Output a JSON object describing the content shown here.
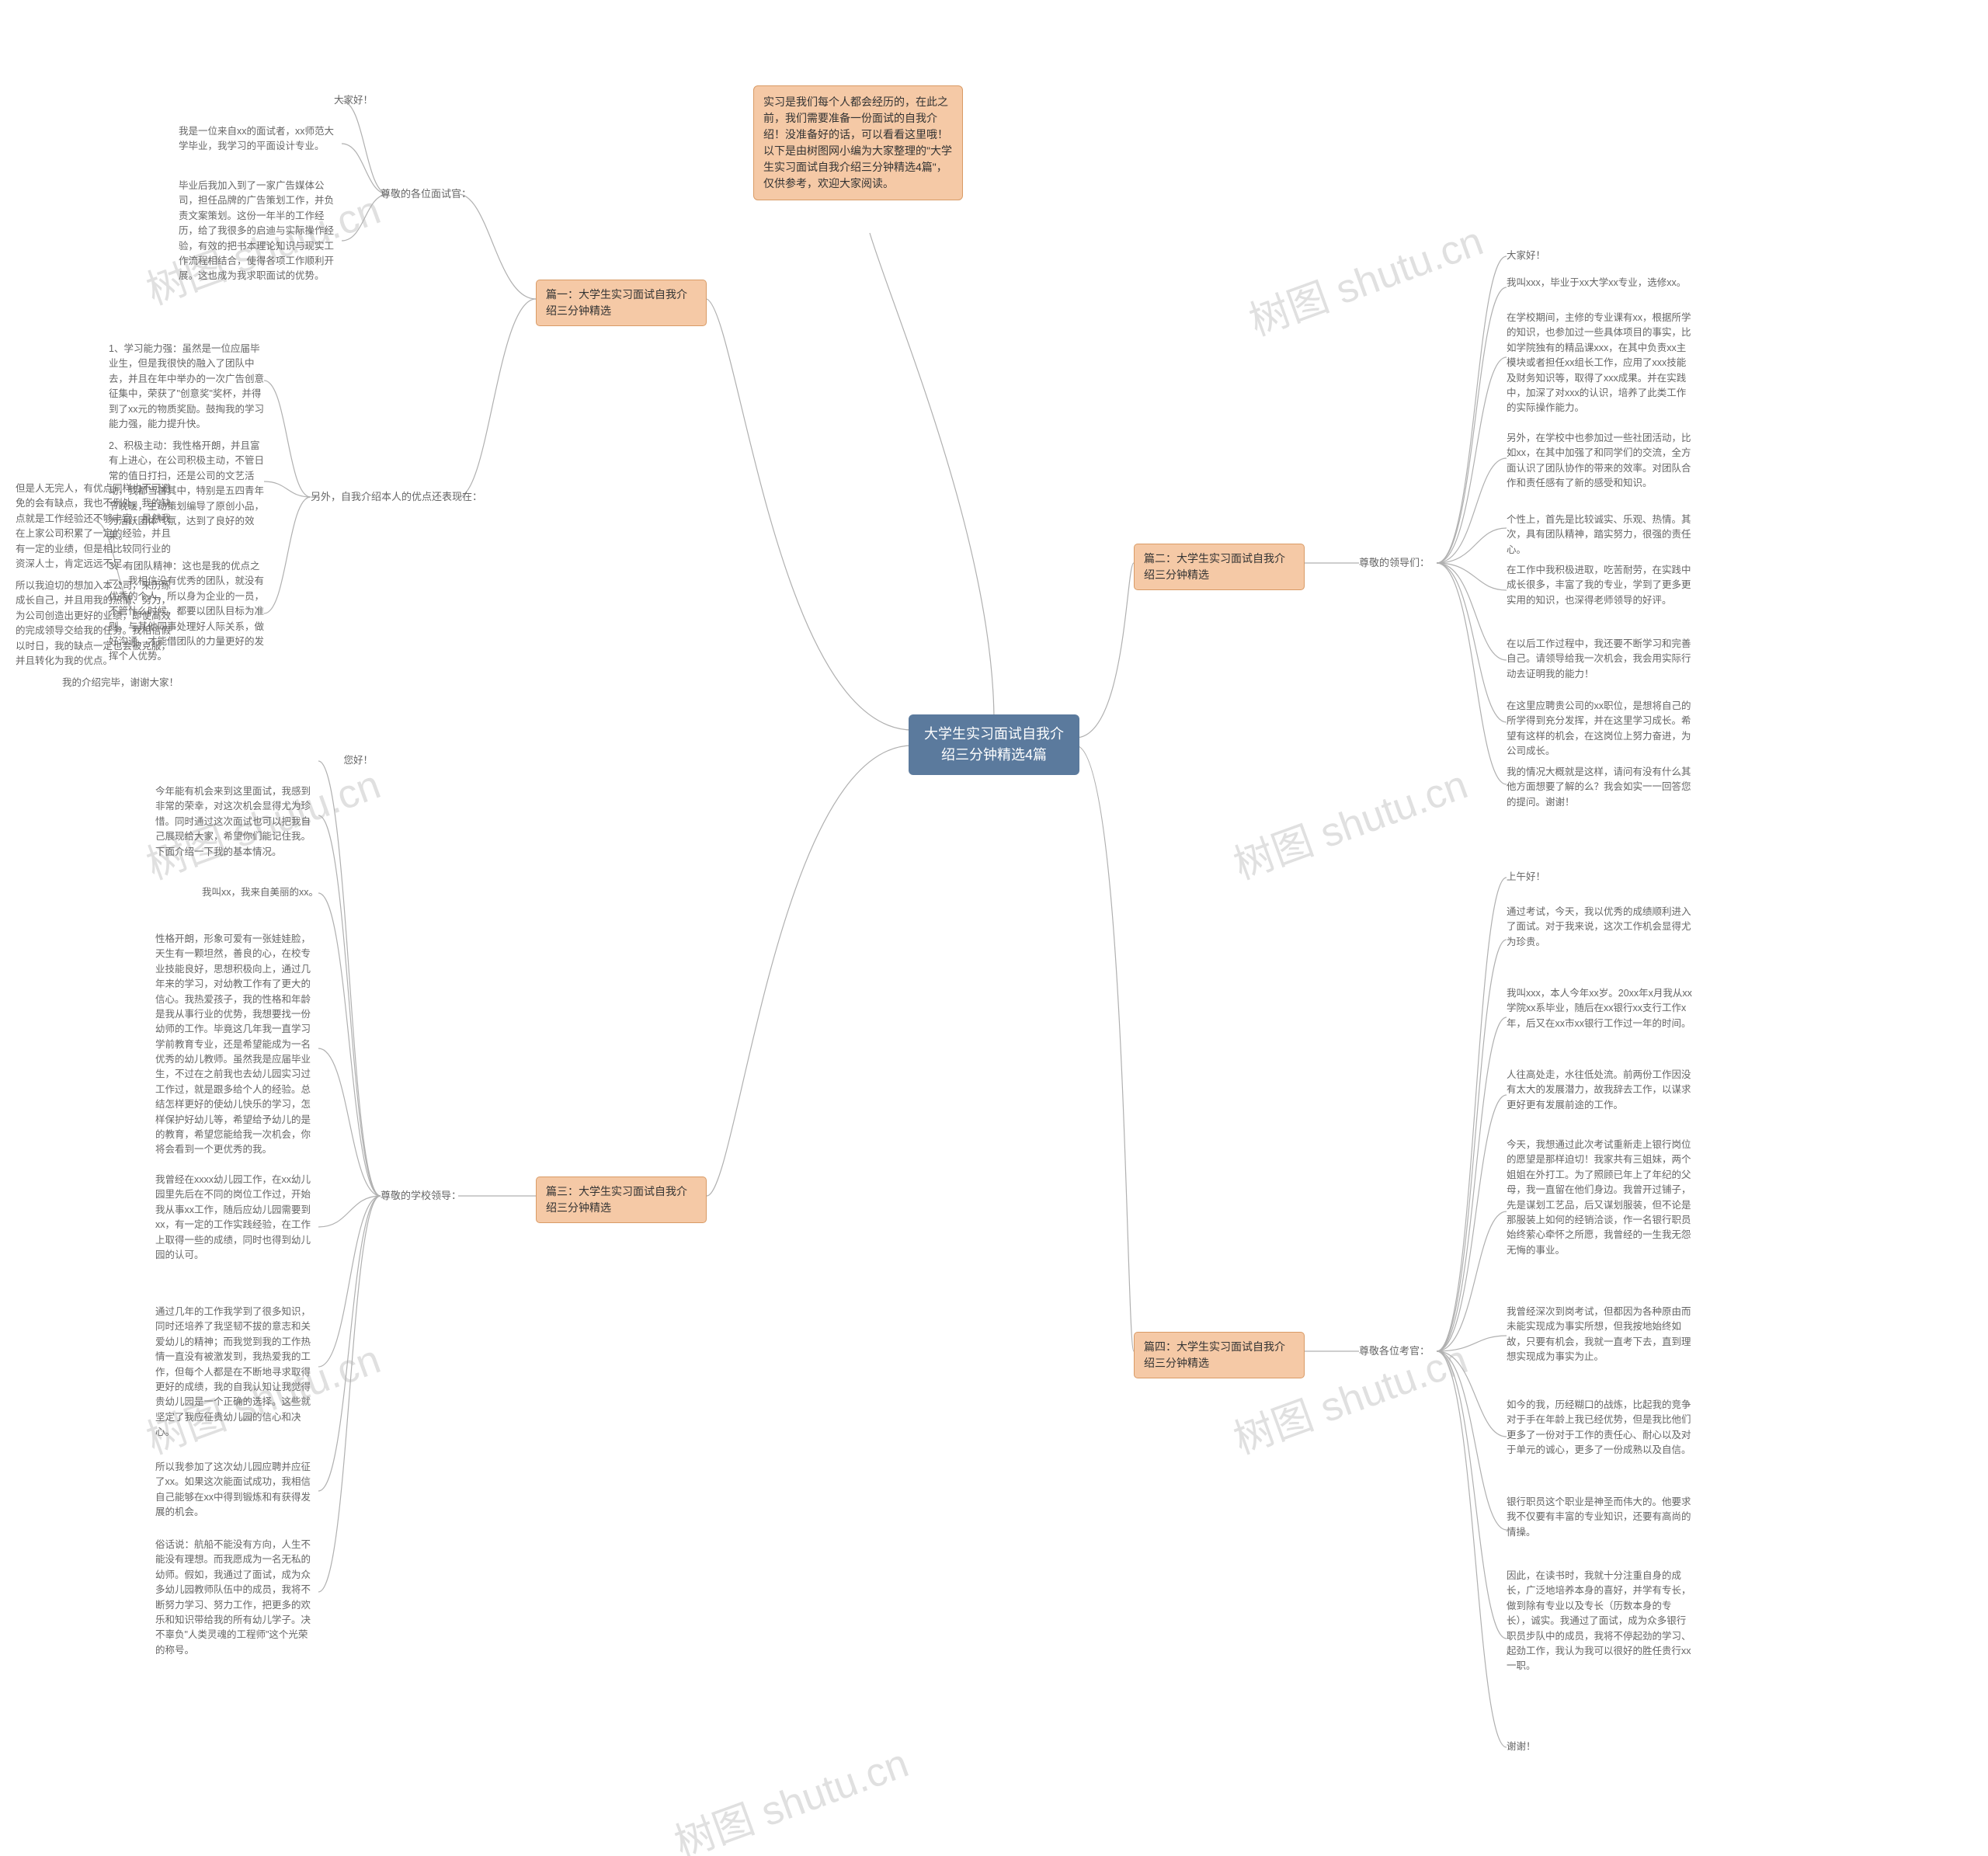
{
  "colors": {
    "root_bg": "#5b7a9d",
    "root_text": "#ffffff",
    "box_bg": "#f5c9a6",
    "box_border": "#d99b66",
    "leaf_text": "#666666",
    "link": "#b0b0b0",
    "watermark": "#e0e0e0",
    "background": "#ffffff"
  },
  "watermark_text": "树图 shutu.cn",
  "root": "大学生实习面试自我介绍三分钟精选4篇",
  "intro": "实习是我们每个人都会经历的，在此之前，我们需要准备一份面试的自我介绍！没准备好的话，可以看看这里哦！以下是由树图网小编为大家整理的\"大学生实习面试自我介绍三分钟精选4篇\"，仅供参考，欢迎大家阅读。",
  "sections": [
    {
      "id": "s1",
      "title": "篇一：大学生实习面试自我介绍三分钟精选",
      "sub": "尊敬的各位面试官：",
      "leaves": [
        "大家好！",
        "我是一位来自xx的面试者，xx师范大学毕业，我学习的平面设计专业。",
        "毕业后我加入到了一家广告媒体公司，担任品牌的广告策划工作，并负责文案策划。这份一年半的工作经历，给了我很多的启迪与实际操作经验，有效的把书本理论知识与现实工作流程相结合，使得各项工作顺利开展。这也成为我求职面试的优势。"
      ],
      "sub2": "另外，自我介绍本人的优点还表现在：",
      "sub2leaves": [
        "1、学习能力强：虽然是一位应届毕业生，但是我很快的融入了团队中去，并且在年中举办的一次广告创意征集中，荣获了\"创意奖\"奖杯，并得到了xx元的物质奖励。鼓掏我的学习能力强，能力提升快。",
        "2、积极主动：我性格开朗，并且富有上进心，在公司积极主动，不管日常的值日打扫，还是公司的文艺活动，我都当首其中，特别是五四青年节晚暖，主动策划编导了原创小品，为活跃团体气氛，达到了良好的效果。",
        "3、有团队精神：这也是我的优点之一。我相信没有优秀的团队，就没有优秀的个人。所以身为企业的一员，不管什么时候，都要以团队目标为准则，与其他同事处理好人际关系，做好沟通，才能借团队的力量更好的发挥个人优势。"
      ],
      "sub3leaves": [
        "但是人无完人，有优点同样也不可避免的会有缺点，我也不例外，我的缺点就是工作经验还不够丰富，虽然我在上家公司积累了一定的经验，并且有一定的业绩，但是相比较同行业的资深人士，肯定远远不足。",
        "所以我迫切的想加入本公司，来历练成长自己，并且用我的热情、努力，为公司创造出更好的业绩，即使高效的完成领导交给我的任务。我相信假以时日，我的缺点一定也会被克服，并且转化为我的优点。",
        "我的介绍完毕，谢谢大家！"
      ]
    },
    {
      "id": "s2",
      "title": "篇二：大学生实习面试自我介绍三分钟精选",
      "sub": "尊敬的领导们：",
      "leaves": [
        "大家好！",
        "我叫xxx，毕业于xx大学xx专业，选修xx。",
        "在学校期间，主修的专业课有xx，根据所学的知识，也参加过一些具体项目的事实，比如学院独有的精品课xxx，在其中负责xx主模块或者担任xx组长工作，应用了xxx技能及财务知识等，取得了xxx成果。并在实践中，加深了对xxx的认识，培养了此类工作的实际操作能力。",
        "另外，在学校中也参加过一些社团活动，比如xx，在其中加强了和同学们的交流，全方面认识了团队协作的带来的效率。对团队合作和责任感有了新的感受和知识。",
        "个性上，首先是比较诚实、乐观、热情。其次，具有团队精神，踏实努力，很强的责任心。",
        "在工作中我积极进取，吃苦耐劳，在实践中成长很多，丰富了我的专业，学到了更多更实用的知识，也深得老师领导的好评。",
        "在以后工作过程中，我还要不断学习和完善自己。请领导给我一次机会，我会用实际行动去证明我的能力！",
        "在这里应聘贵公司的xx职位，是想将自己的所学得到充分发挥，并在这里学习成长。希望有这样的机会，在这岗位上努力奋进，为公司成长。",
        "我的情况大概就是这样，请问有没有什么其他方面想要了解的么？我会如实一一回答您的提问。谢谢！"
      ]
    },
    {
      "id": "s3",
      "title": "篇三：大学生实习面试自我介绍三分钟精选",
      "sub": "尊敬的学校领导：",
      "leaves": [
        "您好！",
        "今年能有机会来到这里面试，我感到非常的荣幸，对这次机会显得尤为珍惜。同时通过这次面试也可以把我自己展现给大家，希望你们能记住我。下面介绍一下我的基本情况。",
        "我叫xx，我来自美丽的xx。",
        "性格开朗，形象可爱有一张娃娃脸，天生有一颗坦然，善良的心，在校专业技能良好，思想积极向上，通过几年来的学习，对幼教工作有了更大的信心。我热爱孩子，我的性格和年龄是我从事行业的优势，我想要找一份幼师的工作。毕竟这几年我一直学习学前教育专业，还是希望能成为一名优秀的幼儿教师。虽然我是应届毕业生，不过在之前我也去幼儿园实习过工作过，就是跟多给个人的经验。总结怎样更好的使幼儿快乐的学习，怎样保护好幼儿等，希望给予幼儿的是的教育，希望您能给我一次机会，你将会看到一个更优秀的我。",
        "我曾经在xxxx幼儿园工作，在xx幼儿园里先后在不同的岗位工作过，开始我从事xx工作，随后应幼儿园需要到xx，有一定的工作实践经验，在工作上取得一些的成绩，同时也得到幼儿园的认可。",
        "通过几年的工作我学到了很多知识，同时还培养了我坚韧不拔的意志和关爱幼儿的精神；而我觉到我的工作热情一直没有被激发到，我热爱我的工作，但每个人都是在不断地寻求取得更好的成绩，我的自我认知让我觉得贵幼儿园是一个正确的选择。这些就坚定了我应征贵幼儿园的信心和决心。",
        "所以我参加了这次幼儿园应聘并应征了xx。如果这次能面试成功，我相信自己能够在xx中得到锻炼和有获得发展的机会。",
        "俗话说：航船不能没有方向，人生不能没有理想。而我愿成为一名无私的幼师。假如，我通过了面试，成为众多幼儿园教师队伍中的成员，我将不断努力学习、努力工作，把更多的欢乐和知识带给我的所有幼儿学子。决不辜负\"人类灵魂的工程师\"这个光荣的称号。"
      ]
    },
    {
      "id": "s4",
      "title": "篇四：大学生实习面试自我介绍三分钟精选",
      "sub": "尊敬各位考官：",
      "leaves": [
        "上午好！",
        "通过考试，今天，我以优秀的成绩顺利进入了面试。对于我来说，这次工作机会显得尤为珍贵。",
        "我叫xxx，本人今年xx岁。20xx年x月我从xx学院xx系毕业，随后在xx银行xx支行工作x年，后又在xx市xx银行工作过一年的时间。",
        "人往高处走，水往低处流。前两份工作因没有太大的发展潜力，故我辞去工作，以谋求更好更有发展前途的工作。",
        "今天，我想通过此次考试重新走上银行岗位的愿望是那样迫切！我家共有三姐妹，两个姐姐在外打工。为了照顾已年上了年纪的父母，我一直留在他们身边。我曾开过铺子，先是谋划工艺品，后又谋划服装，但不论是那服装上如何的经销洽谈，作一名银行职员始终萦心牵怀之所愿，我曾经的一生我无怨无悔的事业。",
        "我曾经深次到岗考试，但都因为各种原由而未能实现成为事实所想，但我按地始终如故，只要有机会，我就一直考下去，直到理想实现成为事实为止。",
        "如今的我，历经糊口的战炼，比起我的竞争对于手在年龄上我已经优势，但是我比他们更多了一份对于工作的责任心、耐心以及对于单元的诚心，更多了一份成熟以及自信。",
        "银行职员这个职业是神圣而伟大的。他要求我不仅要有丰富的专业知识，还要有高尚的情操。",
        "因此，在读书时，我就十分注重自身的成长，广泛地培养本身的喜好，并学有专长，做到除有专业以及专长（历数本身的专长），诚实。我通过了面试，成为众多银行职员步队中的成员，我将不停起劲的学习、起劲工作，我认为我可以很好的胜任贵行xx一职。",
        "谢谢！"
      ]
    }
  ]
}
